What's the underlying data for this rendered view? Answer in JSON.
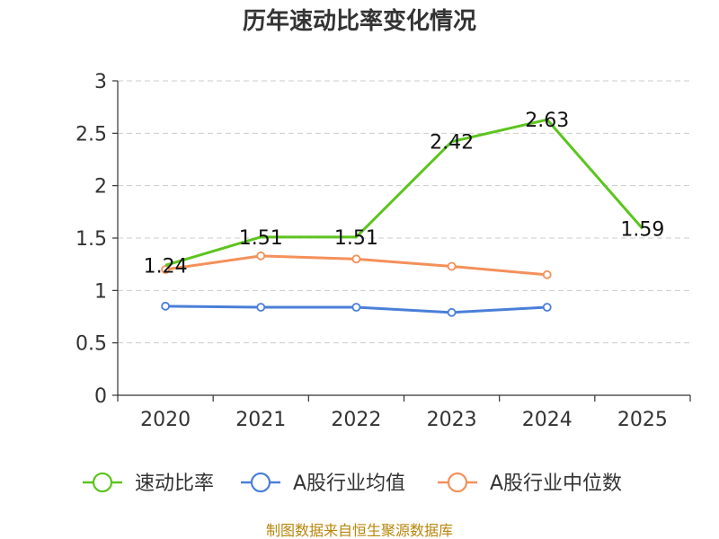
{
  "chart_data": {
    "type": "line",
    "title": "历年速动比率变化情况",
    "categories": [
      "2020",
      "2021",
      "2022",
      "2023",
      "2024",
      "2025"
    ],
    "ylim": [
      0,
      3
    ],
    "yticks": [
      "0",
      "0.5",
      "1",
      "1.5",
      "2",
      "2.5",
      "3"
    ],
    "grid": true,
    "legend_position": "bottom",
    "series": [
      {
        "name": "速动比率",
        "color": "#5cc41f",
        "values": [
          1.24,
          1.51,
          1.51,
          2.42,
          2.63,
          1.59
        ],
        "labels": [
          "1.24",
          "1.51",
          "1.51",
          "2.42",
          "2.63",
          "1.59"
        ]
      },
      {
        "name": "A股行业均值",
        "color": "#4a7fd8",
        "values": [
          0.85,
          0.84,
          0.84,
          0.79,
          0.84,
          null
        ]
      },
      {
        "name": "A股行业中位数",
        "color": "#f4905a",
        "values": [
          1.2,
          1.33,
          1.3,
          1.23,
          1.15,
          null
        ]
      }
    ],
    "source": "制图数据来自恒生聚源数据库"
  }
}
